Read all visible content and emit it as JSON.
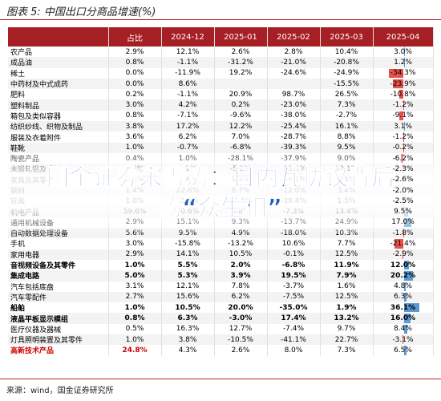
{
  "header": {
    "title": "图表 5:  中国出口分商品增速(%)"
  },
  "table": {
    "columns": [
      "",
      "占比",
      "2024-12",
      "2025-01",
      "2025-02",
      "2025-03",
      "2025-04"
    ],
    "rows": [
      [
        "农产品",
        "2.9%",
        "12.1%",
        "2.6%",
        "2.8%",
        "10.4%",
        "3.0%"
      ],
      [
        "成品油",
        "0.8%",
        "-1.1%",
        "-31.2%",
        "-21.0%",
        "-20.8%",
        "1.2%"
      ],
      [
        "稀土",
        "0.0%",
        "-11.9%",
        "19.2%",
        "-24.6%",
        "-24.9%",
        "-34.3%"
      ],
      [
        "中药材及中式成药",
        "0.0%",
        "8.6%",
        null,
        null,
        "-15.5%",
        "-23.9%"
      ],
      [
        "肥料",
        "0.2%",
        "-1.1%",
        "20.9%",
        "98.7%",
        "26.5%",
        "-10.8%"
      ],
      [
        "塑料制品",
        "3.0%",
        "4.2%",
        "0.2%",
        "-23.0%",
        "7.3%",
        "-1.2%"
      ],
      [
        "箱包及类似容器",
        "0.8%",
        "-7.1%",
        "-9.6%",
        "-38.0%",
        "-2.7%",
        "-9.1%"
      ],
      [
        "纺织纱线、织物及制品",
        "3.8%",
        "17.2%",
        "12.2%",
        "-25.4%",
        "16.1%",
        "3.1%"
      ],
      [
        "服装及衣着附件",
        "3.6%",
        "6.2%",
        "7.0%",
        "-28.7%",
        "8.8%",
        "-1.2%"
      ],
      [
        "鞋靴",
        "1.0%",
        "-0.7%",
        "-6.8%",
        "-39.3%",
        "9.5%",
        "-0.2%"
      ],
      [
        "陶瓷产品",
        "0.4%",
        "1.0%",
        "-28.1%",
        "-37.9%",
        "9.0%",
        "-6.2%"
      ],
      [
        "未锻轧铝及铝材",
        "0.6%",
        "9.1%",
        "-5.2%",
        "-23.4%",
        "12.1%",
        "-2.3%"
      ],
      [
        "家具及其零件",
        "1.5%",
        "2.4%",
        "1.5%",
        "-34.1%",
        "3.5%",
        "-2.6%"
      ],
      [
        "钢材",
        "1.4%",
        "22.6%",
        "6.7%",
        "-12.0%",
        "3.4%",
        "-2.0%"
      ],
      [
        "玩具",
        "1.0%",
        "-2.6%",
        "11.5%",
        "-39.4%",
        "1.5%",
        "-2.5%"
      ],
      [
        "机电产品",
        "59.6%",
        "10.6%",
        "5.8%",
        "-7.3%",
        "13.4%",
        "9.5%"
      ],
      [
        "通用机械设备",
        "2.9%",
        "15.1%",
        "9.3%",
        "-13.7%",
        "24.9%",
        "17.0%"
      ],
      [
        "自动数据处理设备",
        "5.6%",
        "9.5%",
        "4.9%",
        "-18.0%",
        "10.3%",
        "-1.8%"
      ],
      [
        "手机",
        "3.0%",
        "-15.8%",
        "-13.2%",
        "10.6%",
        "7.7%",
        "-21.4%"
      ],
      [
        "家用电器",
        "2.9%",
        "14.1%",
        "10.5%",
        "-0.1%",
        "12.5%",
        "-2.9%"
      ],
      [
        "音视频设备及其零件",
        "1.0%",
        "5.5%",
        "2.0%",
        "-6.8%",
        "11.9%",
        "12.0%"
      ],
      [
        "集成电路",
        "5.0%",
        "5.3%",
        "3.9%",
        "19.5%",
        "7.9%",
        "20.2%"
      ],
      [
        "汽车包括底盘",
        "3.1%",
        "12.1%",
        "7.8%",
        "-3.7%",
        "1.6%",
        "4.8%"
      ],
      [
        "汽车零配件",
        "2.7%",
        "15.6%",
        "6.2%",
        "-7.5%",
        "12.5%",
        "6.3%"
      ],
      [
        "船舶",
        "1.0%",
        "10.5%",
        "20.0%",
        "-35.0%",
        "1.9%",
        "36.1%"
      ],
      [
        "液晶平板显示模组",
        "0.8%",
        "6.3%",
        "-3.0%",
        "17.4%",
        "13.2%",
        "16.0%"
      ],
      [
        "医疗仪器及器械",
        "0.5%",
        "16.3%",
        "12.7%",
        "-7.4%",
        "9.7%",
        "8.4%"
      ],
      [
        "灯具照明装置及其零件",
        "1.0%",
        "3.8%",
        "-10.5%",
        "-41.1%",
        "22.7%",
        "-3.1%"
      ],
      [
        "高新技术产品",
        "24.8%",
        "4.3%",
        "2.6%",
        "8.0%",
        "7.3%",
        "6.5%"
      ]
    ]
  },
  "footer": {
    "source": "来源：wind，国金证券研究所"
  },
  "banner": {
    "text": "国金证券宋雪涛：日内瓦协议背后的“众生相”"
  }
}
